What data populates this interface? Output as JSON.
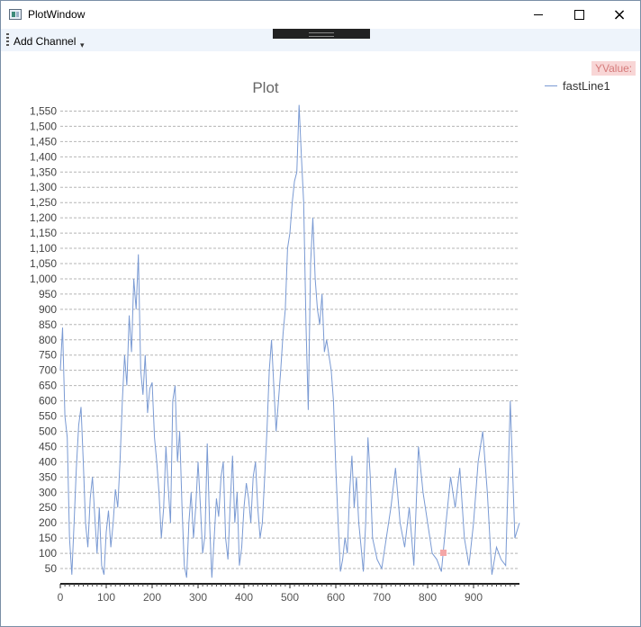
{
  "window": {
    "title": "PlotWindow",
    "minimize_icon": "minimize-icon",
    "maximize_icon": "maximize-icon",
    "close_icon": "close-icon"
  },
  "toolbar": {
    "add_channel_label": "Add Channel",
    "overflow_glyph": "▾"
  },
  "tooltip": {
    "label": "YValue:"
  },
  "legend": {
    "items": [
      {
        "name": "fastLine1",
        "color": "#7a9ad3"
      }
    ]
  },
  "chart_data": {
    "type": "line",
    "title": "Plot",
    "xlabel": "",
    "ylabel": "",
    "xlim": [
      0,
      1000
    ],
    "ylim": [
      0,
      1575
    ],
    "x_ticks": [
      0,
      100,
      200,
      300,
      400,
      500,
      600,
      700,
      800,
      900
    ],
    "x_tick_labels": [
      "0",
      "100",
      "200",
      "300",
      "400",
      "500",
      "600",
      "700",
      "800",
      "900"
    ],
    "y_ticks": [
      50,
      100,
      150,
      200,
      250,
      300,
      350,
      400,
      450,
      500,
      550,
      600,
      650,
      700,
      750,
      800,
      850,
      900,
      950,
      1000,
      1050,
      1100,
      1150,
      1200,
      1250,
      1300,
      1350,
      1400,
      1450,
      1500,
      1550
    ],
    "y_tick_labels": [
      "50",
      "100",
      "150",
      "200",
      "250",
      "300",
      "350",
      "400",
      "450",
      "500",
      "550",
      "600",
      "650",
      "700",
      "750",
      "800",
      "850",
      "900",
      "950",
      "1,000",
      "1,050",
      "1,100",
      "1,150",
      "1,200",
      "1,250",
      "1,300",
      "1,350",
      "1,400",
      "1,450",
      "1,500",
      "1,550"
    ],
    "grid": "horizontal-dashed",
    "legend_position": "top-right",
    "series": [
      {
        "name": "fastLine1",
        "color": "#7a9ad3",
        "x": [
          0,
          5,
          10,
          15,
          20,
          25,
          30,
          35,
          40,
          45,
          50,
          55,
          60,
          65,
          70,
          75,
          80,
          85,
          90,
          95,
          100,
          105,
          110,
          115,
          120,
          125,
          130,
          135,
          140,
          145,
          150,
          155,
          160,
          165,
          170,
          175,
          180,
          185,
          190,
          195,
          200,
          205,
          210,
          215,
          220,
          225,
          230,
          235,
          240,
          245,
          250,
          255,
          260,
          265,
          270,
          275,
          280,
          285,
          290,
          295,
          300,
          305,
          310,
          315,
          320,
          325,
          330,
          335,
          340,
          345,
          350,
          355,
          360,
          365,
          370,
          375,
          380,
          385,
          390,
          395,
          400,
          405,
          410,
          415,
          420,
          425,
          430,
          435,
          440,
          445,
          450,
          455,
          460,
          465,
          470,
          475,
          480,
          485,
          490,
          495,
          500,
          505,
          510,
          515,
          520,
          525,
          530,
          535,
          540,
          545,
          550,
          555,
          560,
          565,
          570,
          575,
          580,
          585,
          590,
          595,
          600,
          605,
          610,
          615,
          620,
          625,
          630,
          635,
          640,
          645,
          650,
          655,
          660,
          665,
          670,
          675,
          680,
          690,
          700,
          710,
          720,
          730,
          740,
          750,
          760,
          770,
          780,
          790,
          800,
          810,
          820,
          830,
          840,
          850,
          860,
          870,
          880,
          890,
          900,
          910,
          920,
          930,
          940,
          950,
          960,
          970,
          980,
          990,
          1000
        ],
        "y": [
          700,
          840,
          550,
          480,
          150,
          30,
          200,
          380,
          520,
          580,
          400,
          200,
          120,
          280,
          350,
          220,
          100,
          250,
          60,
          30,
          170,
          240,
          120,
          200,
          310,
          250,
          400,
          600,
          750,
          650,
          880,
          760,
          1000,
          900,
          1080,
          700,
          620,
          750,
          560,
          640,
          660,
          480,
          400,
          300,
          150,
          250,
          450,
          320,
          200,
          600,
          650,
          400,
          500,
          250,
          60,
          20,
          200,
          300,
          150,
          250,
          400,
          260,
          100,
          160,
          460,
          200,
          20,
          150,
          280,
          220,
          350,
          400,
          150,
          80,
          260,
          420,
          200,
          300,
          60,
          120,
          250,
          330,
          280,
          200,
          350,
          400,
          250,
          150,
          200,
          350,
          500,
          700,
          800,
          650,
          500,
          600,
          700,
          820,
          900,
          1100,
          1150,
          1250,
          1320,
          1350,
          1570,
          1400,
          1250,
          850,
          570,
          1050,
          1200,
          1000,
          900,
          850,
          950,
          760,
          800,
          750,
          700,
          600,
          380,
          200,
          40,
          80,
          150,
          100,
          300,
          420,
          250,
          350,
          200,
          120,
          40,
          200,
          480,
          350,
          150,
          80,
          50,
          150,
          250,
          380,
          200,
          120,
          250,
          60,
          450,
          300,
          200,
          100,
          80,
          40,
          200,
          350,
          250,
          380,
          150,
          60,
          200,
          400,
          500,
          300,
          30,
          120,
          80,
          60,
          600,
          150,
          200
        ]
      }
    ]
  }
}
